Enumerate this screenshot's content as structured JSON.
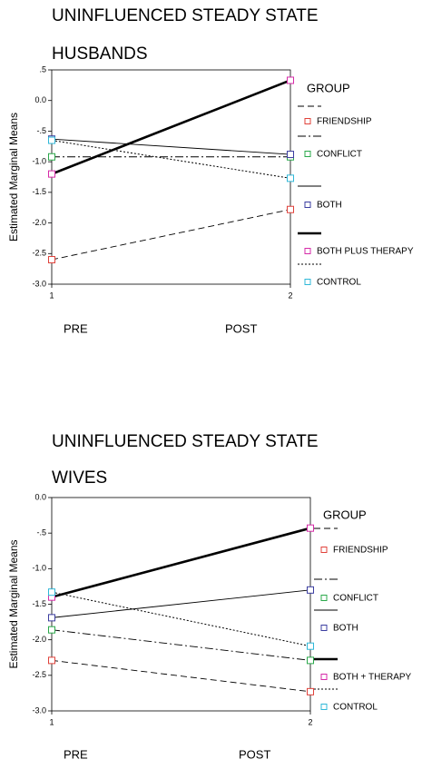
{
  "chart_data": [
    {
      "type": "line",
      "title": "UNINFLUENCED STEADY STATE",
      "subtitle": "HUSBANDS",
      "y_label": "Estimated Marginal Means",
      "legend_title": "GROUP",
      "x": [
        1,
        2
      ],
      "xticks": [
        1,
        2
      ],
      "xlim": [
        1,
        2
      ],
      "categories": [
        "PRE",
        "POST"
      ],
      "ylim": [
        -3,
        0.5
      ],
      "yticks": [
        {
          "value": 0.5,
          "label": ".5"
        },
        {
          "value": 0,
          "label": "0.0"
        },
        {
          "value": -0.5,
          "label": "-.5"
        },
        {
          "value": -1,
          "label": "-1.0"
        },
        -1.5,
        {
          "value": -2,
          "label": "-2.0"
        },
        -2.5,
        {
          "value": -3,
          "label": "-3.0"
        }
      ],
      "legend": "right",
      "series": [
        {
          "name": "FRIENDSHIP",
          "color": "#e0413a",
          "line_style": "dashed",
          "values": [
            -2.6,
            -1.78
          ]
        },
        {
          "name": "CONFLICT",
          "color": "#2aa84a",
          "line_style": "dashdot",
          "values": [
            -0.92,
            -0.92
          ]
        },
        {
          "name": "BOTH",
          "color": "#3b3da0",
          "line_style": "solid",
          "values": [
            -0.63,
            -0.88
          ]
        },
        {
          "name": "BOTH PLUS THERAPY",
          "color": "#d62aa8",
          "line_style": "thick",
          "values": [
            -1.2,
            0.33
          ]
        },
        {
          "name": "CONTROL",
          "color": "#2fb8d8",
          "line_style": "dotted",
          "values": [
            -0.65,
            -1.27
          ]
        }
      ]
    },
    {
      "type": "line",
      "title": "UNINFLUENCED STEADY STATE",
      "subtitle": "WIVES",
      "y_label": "Estimated Marginal Means",
      "legend_title": "GROUP",
      "x": [
        1,
        2
      ],
      "xticks": [
        1,
        2
      ],
      "xlim": [
        1,
        2
      ],
      "categories": [
        "PRE",
        "POST"
      ],
      "ylim": [
        -3,
        0
      ],
      "yticks": [
        {
          "value": 0,
          "label": "0.0"
        },
        {
          "value": -0.5,
          "label": "-.5"
        },
        {
          "value": -1,
          "label": "-1.0"
        },
        -1.5,
        {
          "value": -2,
          "label": "-2.0"
        },
        -2.5,
        {
          "value": -3,
          "label": "-3.0"
        }
      ],
      "legend": "right",
      "series": [
        {
          "name": "FRIENDSHIP",
          "color": "#e0413a",
          "line_style": "dashed",
          "values": [
            -2.29,
            -2.73
          ]
        },
        {
          "name": "CONFLICT",
          "color": "#2aa84a",
          "line_style": "dashdot",
          "values": [
            -1.86,
            -2.29
          ]
        },
        {
          "name": "BOTH",
          "color": "#3b3da0",
          "line_style": "solid",
          "values": [
            -1.69,
            -1.3
          ]
        },
        {
          "name": "BOTH + THERAPY",
          "color": "#d62aa8",
          "line_style": "thick",
          "values": [
            -1.4,
            -0.43
          ]
        },
        {
          "name": "CONTROL",
          "color": "#2fb8d8",
          "line_style": "dotted",
          "values": [
            -1.33,
            -2.09
          ]
        }
      ]
    }
  ]
}
